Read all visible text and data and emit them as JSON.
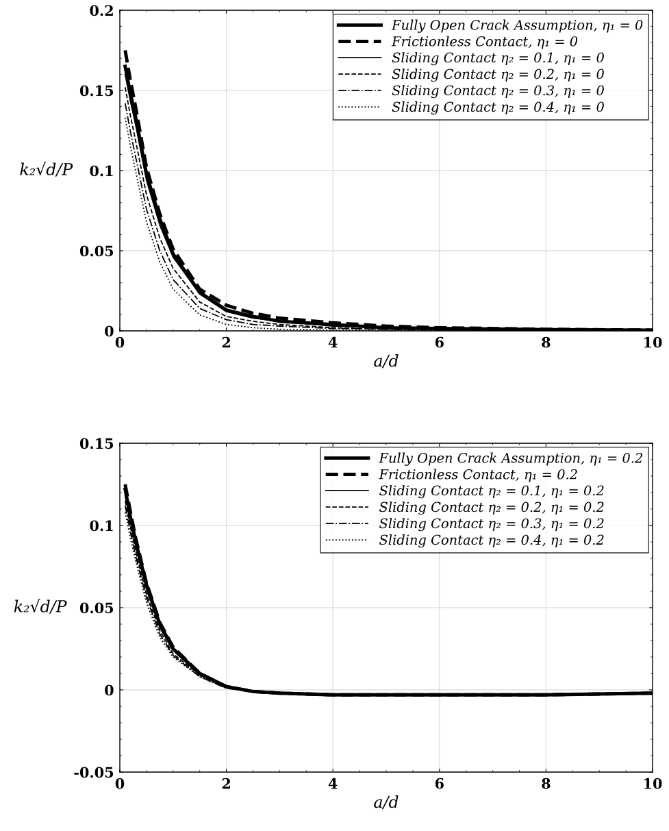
{
  "chart_data": [
    {
      "type": "line",
      "xlabel": "a/d",
      "ylabel": "k₂√d/P",
      "xlim": [
        0,
        10
      ],
      "ylim": [
        0,
        0.2
      ],
      "xticks": [
        0,
        2,
        4,
        6,
        8,
        10
      ],
      "yticks": [
        0,
        0.05,
        0.1,
        0.15,
        0.2
      ],
      "grid": true,
      "legend": "top right",
      "x": [
        0.1,
        0.2,
        0.3,
        0.5,
        0.75,
        1,
        1.5,
        2,
        2.5,
        3,
        4,
        5,
        6,
        8,
        10
      ],
      "series": [
        {
          "name": "Fully Open Crack Assumption, η₁ = 0",
          "color": "#000000",
          "line_style": "solid",
          "values": [
            0.165,
            0.148,
            0.133,
            0.098,
            0.07,
            0.048,
            0.024,
            0.013,
            0.009,
            0.006,
            0.004,
            0.002,
            0.0015,
            0.0008,
            0.0005
          ]
        },
        {
          "name": "Frictionless Contact, η₁ = 0",
          "color": "#000000",
          "line_style": "dashed",
          "values": [
            0.175,
            0.156,
            0.139,
            0.102,
            0.073,
            0.051,
            0.026,
            0.016,
            0.011,
            0.008,
            0.005,
            0.003,
            0.002,
            0.001,
            0.0005
          ]
        },
        {
          "name": "Sliding Contact η₂ = 0.1, η₁ = 0",
          "color": "#000000",
          "line_style": "solid",
          "values": [
            0.16,
            0.143,
            0.128,
            0.094,
            0.066,
            0.046,
            0.023,
            0.012,
            0.008,
            0.006,
            0.003,
            0.002,
            0.0015,
            0.0008,
            0.0005
          ]
        },
        {
          "name": "Sliding Contact η₂ = 0.2, η₁ = 0",
          "color": "#000000",
          "line_style": "dashed",
          "values": [
            0.152,
            0.134,
            0.118,
            0.085,
            0.058,
            0.039,
            0.018,
            0.009,
            0.006,
            0.004,
            0.002,
            0.001,
            0.001,
            0.0005,
            0.0003
          ]
        },
        {
          "name": "Sliding Contact η₂ = 0.3, η₁ = 0",
          "color": "#000000",
          "line_style": "dashdot",
          "values": [
            0.142,
            0.124,
            0.108,
            0.076,
            0.05,
            0.032,
            0.014,
            0.007,
            0.004,
            0.003,
            0.0015,
            0.001,
            0.0005,
            0.0003,
            0.0002
          ]
        },
        {
          "name": "Sliding Contact η₂ = 0.4, η₁ = 0",
          "color": "#000000",
          "line_style": "dotted",
          "values": [
            0.133,
            0.115,
            0.099,
            0.068,
            0.043,
            0.026,
            0.01,
            0.004,
            0.002,
            0.001,
            0.0005,
            0.0003,
            0.0002,
            0.0001,
            0.0001
          ]
        }
      ]
    },
    {
      "type": "line",
      "xlabel": "a/d",
      "ylabel": "k₂√d/P",
      "xlim": [
        0,
        10
      ],
      "ylim": [
        -0.05,
        0.15
      ],
      "xticks": [
        0,
        2,
        4,
        6,
        8,
        10
      ],
      "yticks": [
        {
          "value": -0.05,
          "label": "-0.05"
        },
        0,
        0.05,
        0.1,
        0.15
      ],
      "grid": true,
      "legend": "top right",
      "x": [
        0.1,
        0.2,
        0.3,
        0.5,
        0.75,
        1,
        1.5,
        2,
        2.5,
        3,
        4,
        5,
        6,
        8,
        10
      ],
      "series": [
        {
          "name": "Fully Open Crack Assumption, η₁ = 0.2",
          "color": "#000000",
          "line_style": "solid",
          "values": [
            0.122,
            0.105,
            0.09,
            0.064,
            0.04,
            0.025,
            0.01,
            0.002,
            -0.001,
            -0.002,
            -0.003,
            -0.003,
            -0.003,
            -0.003,
            -0.002
          ]
        },
        {
          "name": "Frictionless Contact, η₁ = 0.2",
          "color": "#000000",
          "line_style": "dashed",
          "values": [
            0.125,
            0.108,
            0.092,
            0.065,
            0.041,
            0.026,
            0.01,
            0.002,
            -0.001,
            -0.002,
            -0.003,
            -0.003,
            -0.003,
            -0.003,
            -0.002
          ]
        },
        {
          "name": "Sliding Contact η₂ = 0.1, η₁ = 0.2",
          "color": "#000000",
          "line_style": "solid",
          "values": [
            0.118,
            0.102,
            0.087,
            0.061,
            0.038,
            0.024,
            0.009,
            0.002,
            -0.001,
            -0.002,
            -0.003,
            -0.003,
            -0.003,
            -0.003,
            -0.002
          ]
        },
        {
          "name": "Sliding Contact η₂ = 0.2, η₁ = 0.2",
          "color": "#000000",
          "line_style": "dashed",
          "values": [
            0.115,
            0.099,
            0.084,
            0.058,
            0.036,
            0.022,
            0.009,
            0.002,
            -0.001,
            -0.002,
            -0.003,
            -0.003,
            -0.003,
            -0.003,
            -0.002
          ]
        },
        {
          "name": "Sliding Contact η₂ = 0.3, η₁ = 0.2",
          "color": "#000000",
          "line_style": "dashdot",
          "values": [
            0.112,
            0.096,
            0.081,
            0.056,
            0.034,
            0.021,
            0.008,
            0.001,
            -0.001,
            -0.002,
            -0.003,
            -0.003,
            -0.003,
            -0.003,
            -0.002
          ]
        },
        {
          "name": "Sliding Contact η₂ = 0.4, η₁ = 0.2",
          "color": "#000000",
          "line_style": "dotted",
          "values": [
            0.108,
            0.092,
            0.078,
            0.053,
            0.032,
            0.02,
            0.008,
            0.001,
            -0.001,
            -0.002,
            -0.003,
            -0.003,
            -0.003,
            -0.003,
            -0.002
          ]
        }
      ]
    }
  ]
}
